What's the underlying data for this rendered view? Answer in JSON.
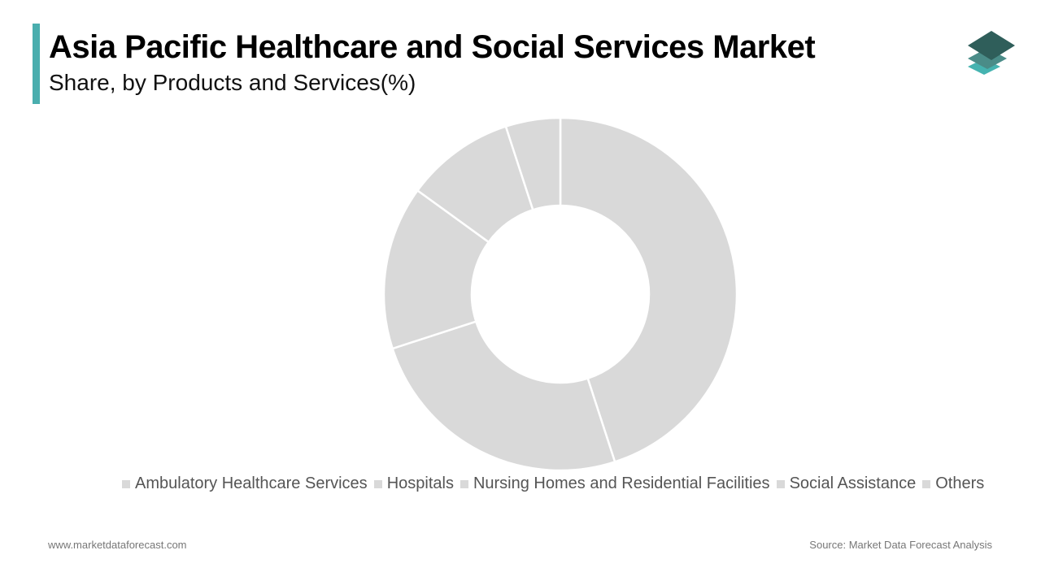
{
  "header": {
    "title": "Asia Pacific Healthcare and Social Services Market",
    "subtitle": "Share, by Products and Services(%)",
    "accent_color": "#4aaeae"
  },
  "logo": {
    "icon": "stacked-layers-logo-icon",
    "colors": [
      "#2f5e5a",
      "#4a8c88",
      "#45b3b0"
    ]
  },
  "chart_data": {
    "type": "pie",
    "subtype": "donut",
    "title": "Asia Pacific Healthcare and Social Services Market",
    "subtitle": "Share, by Products and Services(%)",
    "categories": [
      "Ambulatory Healthcare Services",
      "Hospitals",
      "Nursing Homes and Residential Facilities",
      "Social Assistance",
      "Others"
    ],
    "values": [
      45,
      25,
      15,
      10,
      5
    ],
    "unit": "%",
    "slice_color": "#d9d9d9",
    "legend_position": "bottom",
    "data_labels": false
  },
  "legend": {
    "items": [
      {
        "label": "Ambulatory Healthcare Services"
      },
      {
        "label": "Hospitals"
      },
      {
        "label": "Nursing Homes and Residential Facilities"
      },
      {
        "label": "Social Assistance"
      },
      {
        "label": "Others"
      }
    ]
  },
  "footer": {
    "website": "www.marketdataforecast.com",
    "source": "Source: Market Data Forecast Analysis"
  }
}
